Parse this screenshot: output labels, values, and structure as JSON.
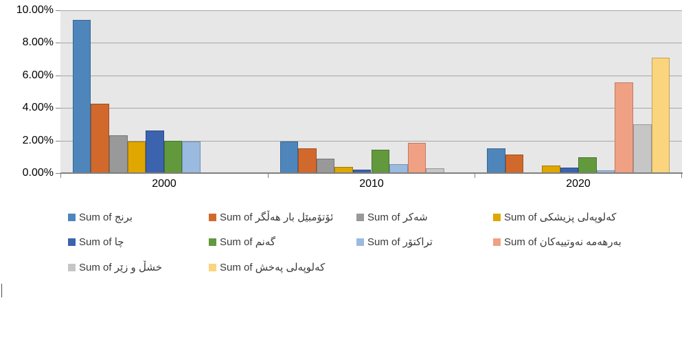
{
  "chart_data": {
    "type": "bar",
    "title": "",
    "xlabel": "",
    "ylabel": "",
    "categories": [
      "2000",
      "2010",
      "2020"
    ],
    "y_tick_labels": [
      "10.00%",
      "8.00%",
      "6.00%",
      "4.00%",
      "2.00%",
      "0.00%"
    ],
    "ylim": [
      0,
      10
    ],
    "y_unit": "percent",
    "grid": true,
    "legend_position": "bottom",
    "plot_fill": "#E7E7E7",
    "gridline_color": "#A6A6A6",
    "axis_color": "#7F7F7F",
    "series": [
      {
        "name": "Sum of برنج",
        "color": "#4E86BC",
        "border": "#3A6590",
        "values": [
          9.4,
          1.95,
          1.5
        ]
      },
      {
        "name": "Sum of ئۆتۆمبێل بار هەڵگر",
        "color": "#D2692C",
        "border": "#9C4E1F",
        "values": [
          4.25,
          1.5,
          1.15
        ]
      },
      {
        "name": "Sum of شەکر",
        "color": "#999999",
        "border": "#757575",
        "values": [
          2.3,
          0.9,
          0
        ]
      },
      {
        "name": "Sum of کەلوپەلی پزیشکی",
        "color": "#DFA700",
        "border": "#A37A00",
        "values": [
          1.95,
          0.4,
          0.45
        ]
      },
      {
        "name": "Sum of چا",
        "color": "#3B63AE",
        "border": "#2B4A85",
        "values": [
          2.6,
          0.2,
          0.35
        ]
      },
      {
        "name": "Sum of گەنم",
        "color": "#63993D",
        "border": "#49722D",
        "values": [
          2.0,
          1.45,
          0.95
        ]
      },
      {
        "name": "Sum of تراکتۆر",
        "color": "#9BBADF",
        "border": "#7691B1",
        "values": [
          1.95,
          0.55,
          0.15
        ]
      },
      {
        "name": "Sum of بەرهەمە نەوتییەکان",
        "color": "#F1A183",
        "border": "#BA7A61",
        "values": [
          0,
          1.85,
          5.55
        ]
      },
      {
        "name": "Sum of خشڵ و زێر",
        "color": "#C6C6C6",
        "border": "#969696",
        "values": [
          0,
          0.3,
          3.0
        ]
      },
      {
        "name": "Sum of کەلوپەلی پەخش",
        "color": "#FBD47E",
        "border": "#C2A159",
        "values": [
          0,
          0,
          7.1
        ]
      }
    ]
  }
}
